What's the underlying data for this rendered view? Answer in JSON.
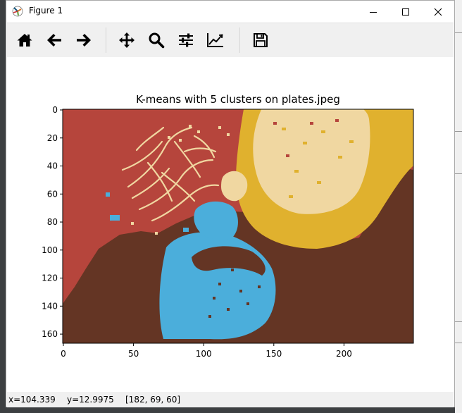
{
  "window": {
    "title": "Figure 1"
  },
  "toolbar": {
    "buttons": [
      {
        "name": "home-button",
        "icon": "home-icon"
      },
      {
        "name": "back-button",
        "icon": "arrow-left-icon"
      },
      {
        "name": "forward-button",
        "icon": "arrow-right-icon"
      },
      {
        "name": "pan-button",
        "icon": "move-icon"
      },
      {
        "name": "zoom-button",
        "icon": "zoom-icon"
      },
      {
        "name": "subplots-button",
        "icon": "sliders-icon"
      },
      {
        "name": "axes-button",
        "icon": "line-chart-icon"
      },
      {
        "name": "save-button",
        "icon": "floppy-disk-icon"
      }
    ]
  },
  "chart_data": {
    "type": "image",
    "title": "K-means with 5 clusters on plates.jpeg",
    "xlim": [
      -0.5,
      249.5
    ],
    "ylim": [
      166.5,
      -0.5
    ],
    "xticks": [
      0,
      50,
      100,
      150,
      200
    ],
    "yticks": [
      0,
      20,
      40,
      60,
      80,
      100,
      120,
      140,
      160
    ],
    "cluster_colors": [
      "#b6453c",
      "#643524",
      "#4baedb",
      "#e0b12e",
      "#f0d7a1"
    ]
  },
  "status": {
    "x": "x=104.339",
    "y": "y=12.9975",
    "pixel": "[182, 69, 60]"
  }
}
